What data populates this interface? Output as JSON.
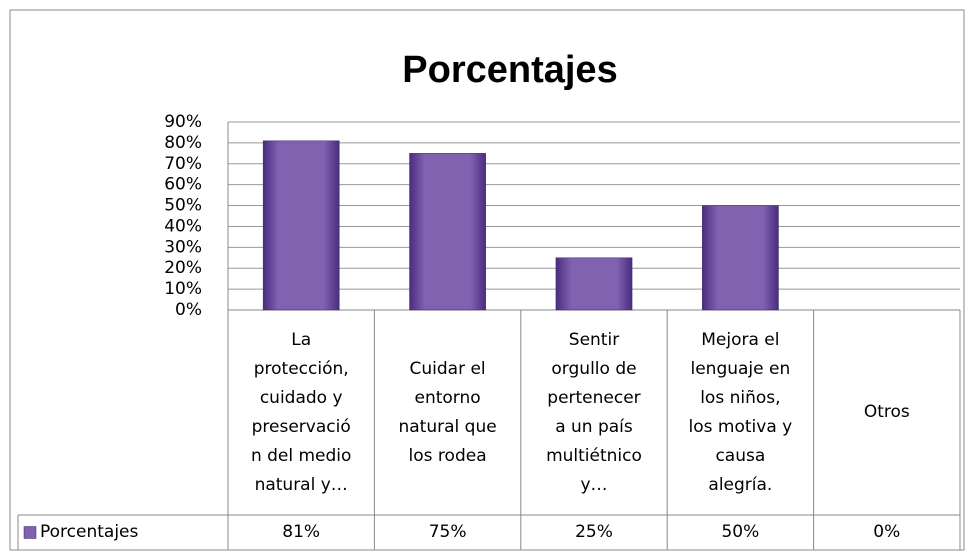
{
  "chart_data": {
    "type": "bar",
    "title": "Porcentajes",
    "categories": [
      "La\nprotección,\ncuidado y\npreservació\nn del medio\nnatural y…",
      "Cuidar el\nentorno\nnatural que\nlos rodea",
      "Sentir\norgullo de\npertenecer\na un país\nmultiétnico\ny…",
      "Mejora el\nlenguaje en\nlos niños,\nlos motiva y\ncausa\nalegría.",
      "Otros"
    ],
    "series": [
      {
        "name": "Porcentajes",
        "color": "#7f62b0",
        "values": [
          81,
          75,
          25,
          50,
          0
        ],
        "value_labels": [
          "81%",
          "75%",
          "25%",
          "50%",
          "0%"
        ]
      }
    ],
    "ylim": [
      0,
      90
    ],
    "yticks": [
      {
        "value": 0,
        "label": "0%"
      },
      {
        "value": 10,
        "label": "10%"
      },
      {
        "value": 20,
        "label": "20%"
      },
      {
        "value": 30,
        "label": "30%"
      },
      {
        "value": 40,
        "label": "40%"
      },
      {
        "value": 50,
        "label": "50%"
      },
      {
        "value": 60,
        "label": "60%"
      },
      {
        "value": 70,
        "label": "70%"
      },
      {
        "value": 80,
        "label": "80%"
      },
      {
        "value": 90,
        "label": "90%"
      }
    ],
    "grid": true
  }
}
